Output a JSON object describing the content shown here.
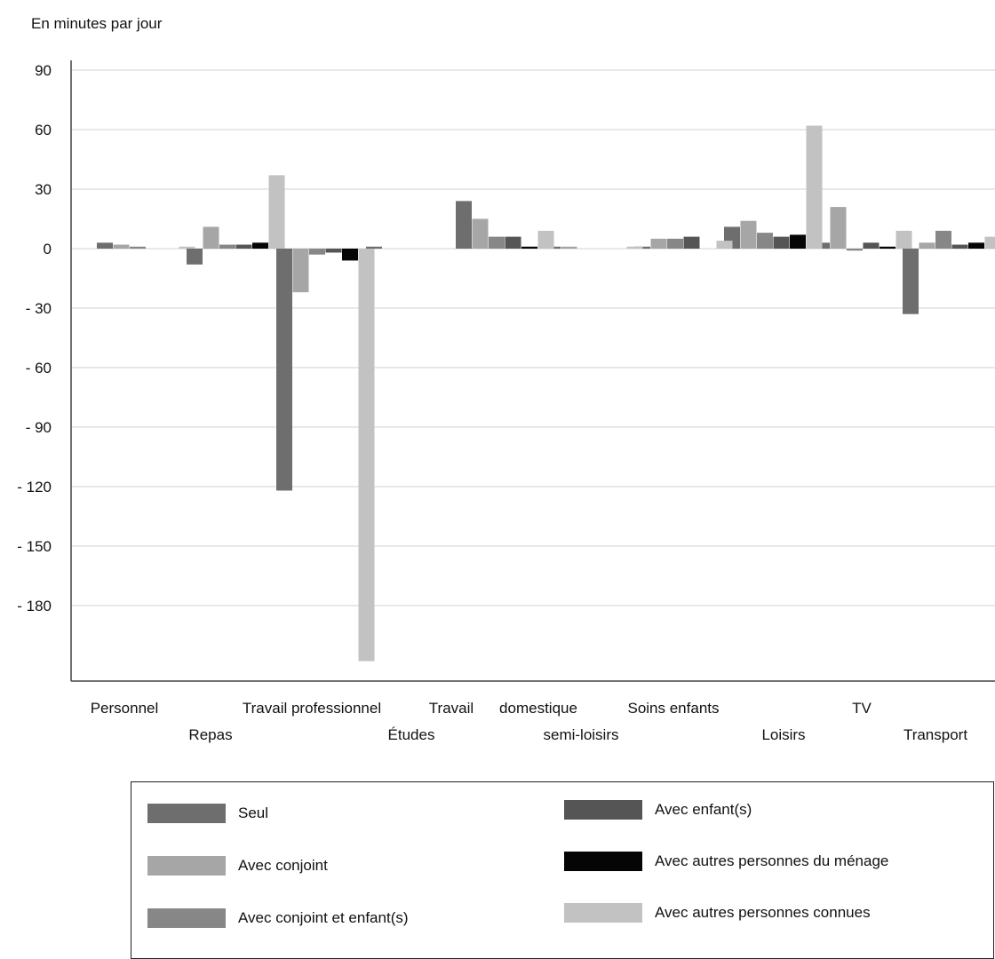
{
  "chart_data": {
    "type": "bar",
    "ylabel": "En minutes par jour",
    "ylim": [
      -210,
      100
    ],
    "yticks": [
      90,
      60,
      30,
      0,
      -30,
      -60,
      -90,
      -120,
      -150,
      -180
    ],
    "ytick_labels": [
      "90",
      "60",
      "30",
      "0",
      "- 30",
      "- 60",
      "- 90",
      "- 120",
      "- 150",
      "- 180"
    ],
    "grid": true,
    "legend_position": "bottom",
    "categories": [
      "Personnel",
      "Repas",
      "Travail professionnel",
      "Études",
      "Travail",
      "domestique",
      "semi-loisirs",
      "Soins enfants",
      "Loisirs",
      "TV",
      "Transport"
    ],
    "series": [
      {
        "name": "Seul",
        "color": "#6e6e6e",
        "values": [
          3,
          -8,
          -122,
          1,
          24,
          5,
          1,
          1,
          11,
          3,
          -33
        ]
      },
      {
        "name": "Avec conjoint",
        "color": "#a6a6a6",
        "values": [
          2,
          11,
          -22,
          0,
          15,
          3,
          1,
          5,
          14,
          21,
          3
        ]
      },
      {
        "name": "Avec conjoint et enfant(s)",
        "color": "#878787",
        "values": [
          1,
          2,
          -3,
          0,
          6,
          1,
          0,
          5,
          8,
          -1,
          9
        ]
      },
      {
        "name": "Avec enfant(s)",
        "color": "#555555",
        "values": [
          0,
          2,
          -2,
          0,
          6,
          0,
          0,
          6,
          6,
          3,
          2
        ]
      },
      {
        "name": "Avec autres personnes du ménage",
        "color": "#050505",
        "values": [
          0,
          3,
          -6,
          0,
          1,
          0,
          0,
          0,
          7,
          1,
          3
        ]
      },
      {
        "name": "Avec autres personnes connues",
        "color": "#c2c2c2",
        "values": [
          1,
          37,
          -208,
          0,
          9,
          1,
          1,
          4,
          62,
          9,
          6
        ]
      }
    ]
  }
}
